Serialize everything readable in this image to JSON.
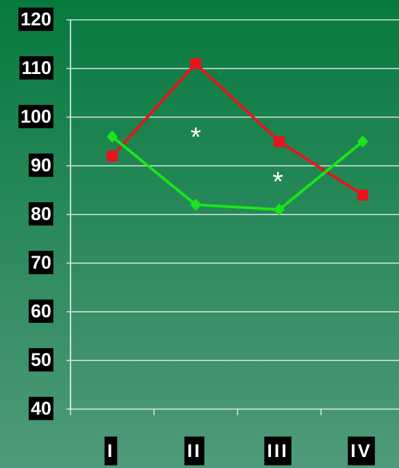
{
  "chart_data": {
    "type": "line",
    "categories": [
      "I",
      "II",
      "III",
      "IV"
    ],
    "series": [
      {
        "color": "#e8141c",
        "marker": "square",
        "values": [
          92,
          111,
          95,
          84
        ]
      },
      {
        "color": "#19e619",
        "marker": "diamond",
        "values": [
          96,
          82,
          81,
          95
        ]
      }
    ],
    "ylim": [
      40,
      120
    ],
    "yticks": [
      40,
      50,
      60,
      70,
      80,
      90,
      100,
      110,
      120
    ],
    "grid": true,
    "annotations": [
      "*",
      "*"
    ]
  }
}
